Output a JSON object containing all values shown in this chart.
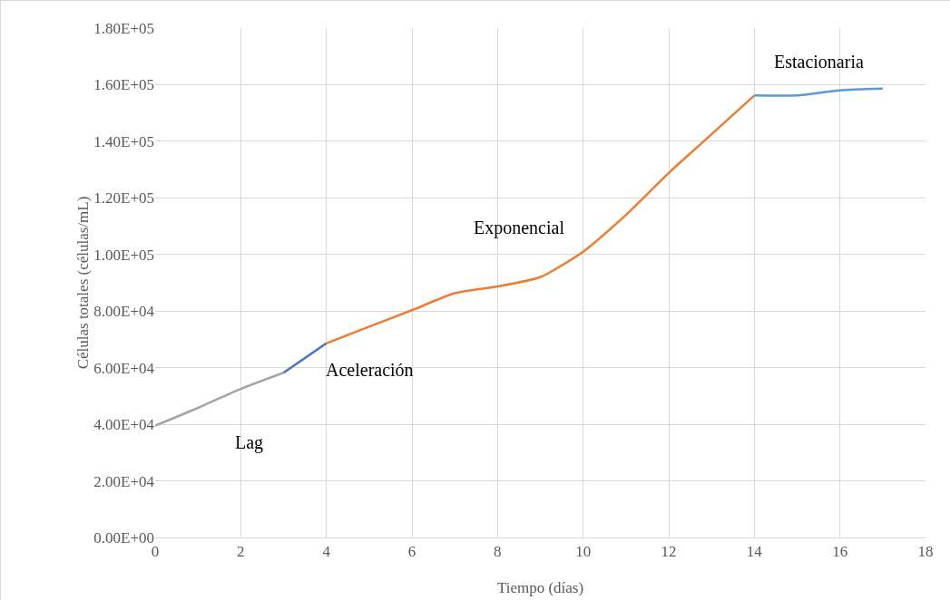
{
  "chart_data": {
    "type": "line",
    "xlabel": "Tiempo (días)",
    "ylabel": "Células totales (células/mL)",
    "series": [
      {
        "color": "#a5a5a5",
        "x": [
          0,
          1,
          2,
          3
        ],
        "values": [
          39500,
          45800,
          52500,
          58200
        ]
      },
      {
        "color": "#4472c4",
        "x": [
          3,
          4
        ],
        "values": [
          58200,
          68600
        ]
      },
      {
        "color": "#ed7d31",
        "x": [
          4,
          5,
          6,
          7,
          8,
          9,
          10,
          11,
          12,
          13,
          14
        ],
        "values": [
          68600,
          74500,
          80300,
          86300,
          88700,
          92000,
          101000,
          114000,
          128800,
          142500,
          156200
        ]
      },
      {
        "color": "#5b9bd5",
        "x": [
          14,
          15,
          16,
          17
        ],
        "values": [
          156200,
          156200,
          158000,
          158600
        ]
      }
    ],
    "xlim": [
      0,
      18
    ],
    "xticks": [
      0,
      2,
      4,
      6,
      8,
      10,
      12,
      14,
      16,
      18
    ],
    "ylim": [
      0,
      180000
    ],
    "yticks": [
      {
        "value": 0,
        "label": "0.00E+00"
      },
      {
        "value": 20000,
        "label": "2.00E+04"
      },
      {
        "value": 40000,
        "label": "4.00E+04"
      },
      {
        "value": 60000,
        "label": "6.00E+04"
      },
      {
        "value": 80000,
        "label": "8.00E+04"
      },
      {
        "value": 100000,
        "label": "1.00E+05"
      },
      {
        "value": 120000,
        "label": "1.20E+05"
      },
      {
        "value": 140000,
        "label": "1.40E+05"
      },
      {
        "value": 160000,
        "label": "1.60E+05"
      },
      {
        "value": 180000,
        "label": "1.80E+05"
      }
    ],
    "grid": true,
    "legend": false,
    "marker": "none",
    "line_style": "solid",
    "annotations": [
      "Lag",
      "Aceleración",
      "Exponencial",
      "Estacionaria"
    ]
  }
}
